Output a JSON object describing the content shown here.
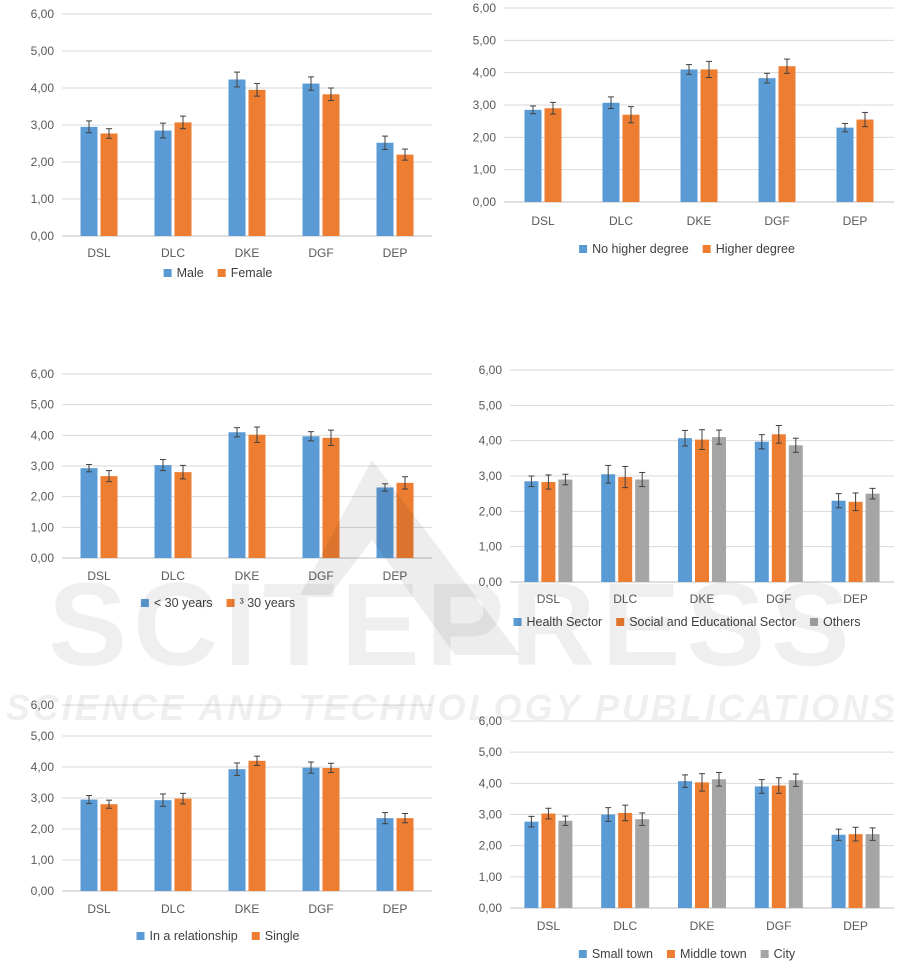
{
  "chart_data": [
    {
      "type": "bar",
      "categories": [
        "DSL",
        "DLC",
        "DKE",
        "DGF",
        "DEP"
      ],
      "ylim": [
        0,
        6
      ],
      "yticks": [
        "0,00",
        "1,00",
        "2,00",
        "3,00",
        "4,00",
        "5,00",
        "6,00"
      ],
      "grid": true,
      "legend_position": "bottom",
      "series": [
        {
          "name": "Male",
          "color": "#5B9BD5",
          "values": [
            2.95,
            2.85,
            4.23,
            4.12,
            2.52
          ],
          "errors": [
            0.16,
            0.2,
            0.2,
            0.18,
            0.18
          ]
        },
        {
          "name": "Female",
          "color": "#ED7D31",
          "values": [
            2.77,
            3.07,
            3.95,
            3.83,
            2.2
          ],
          "errors": [
            0.13,
            0.17,
            0.17,
            0.17,
            0.15
          ]
        }
      ]
    },
    {
      "type": "bar",
      "categories": [
        "DSL",
        "DLC",
        "DKE",
        "DGF",
        "DEP"
      ],
      "ylim": [
        0,
        6
      ],
      "yticks": [
        "0,00",
        "1,00",
        "2,00",
        "3,00",
        "4,00",
        "5,00",
        "6,00"
      ],
      "grid": true,
      "legend_position": "bottom",
      "series": [
        {
          "name": "No higher degree",
          "color": "#5B9BD5",
          "values": [
            2.85,
            3.07,
            4.1,
            3.83,
            2.3
          ],
          "errors": [
            0.12,
            0.18,
            0.15,
            0.15,
            0.13
          ]
        },
        {
          "name": "Higher degree",
          "color": "#ED7D31",
          "values": [
            2.9,
            2.7,
            4.1,
            4.2,
            2.55
          ],
          "errors": [
            0.18,
            0.25,
            0.25,
            0.22,
            0.22
          ]
        }
      ]
    },
    {
      "type": "bar",
      "categories": [
        "DSL",
        "DLC",
        "DKE",
        "DGF",
        "DEP"
      ],
      "ylim": [
        0,
        6
      ],
      "yticks": [
        "0,00",
        "1,00",
        "2,00",
        "3,00",
        "4,00",
        "5,00",
        "6,00"
      ],
      "grid": true,
      "legend_position": "bottom",
      "series": [
        {
          "name": "< 30 years",
          "color": "#5B9BD5",
          "values": [
            2.93,
            3.03,
            4.1,
            3.97,
            2.3
          ],
          "errors": [
            0.12,
            0.18,
            0.15,
            0.15,
            0.12
          ]
        },
        {
          "name": "³ 30 years",
          "color": "#ED7D31",
          "values": [
            2.67,
            2.8,
            4.02,
            3.92,
            2.45
          ],
          "errors": [
            0.18,
            0.22,
            0.25,
            0.25,
            0.2
          ]
        }
      ]
    },
    {
      "type": "bar",
      "categories": [
        "DSL",
        "DLC",
        "DKE",
        "DGF",
        "DEP"
      ],
      "ylim": [
        0,
        6
      ],
      "yticks": [
        "0,00",
        "1,00",
        "2,00",
        "3,00",
        "4,00",
        "5,00",
        "6,00"
      ],
      "grid": true,
      "legend_position": "bottom",
      "series": [
        {
          "name": "Health Sector",
          "color": "#5B9BD5",
          "values": [
            2.85,
            3.05,
            4.07,
            3.97,
            2.3
          ],
          "errors": [
            0.15,
            0.25,
            0.22,
            0.2,
            0.2
          ]
        },
        {
          "name": "Social and Educational Sector",
          "color": "#ED7D31",
          "values": [
            2.83,
            2.97,
            4.03,
            4.18,
            2.27
          ],
          "errors": [
            0.2,
            0.3,
            0.28,
            0.25,
            0.25
          ]
        },
        {
          "name": "Others",
          "color": "#A5A5A5",
          "values": [
            2.9,
            2.9,
            4.1,
            3.87,
            2.5
          ],
          "errors": [
            0.15,
            0.2,
            0.2,
            0.2,
            0.15
          ]
        }
      ]
    },
    {
      "type": "bar",
      "categories": [
        "DSL",
        "DLC",
        "DKE",
        "DGF",
        "DEP"
      ],
      "ylim": [
        0,
        6
      ],
      "yticks": [
        "0,00",
        "1,00",
        "2,00",
        "3,00",
        "4,00",
        "5,00",
        "6,00"
      ],
      "grid": true,
      "legend_position": "bottom",
      "series": [
        {
          "name": "In a relationship",
          "color": "#5B9BD5",
          "values": [
            2.95,
            2.93,
            3.93,
            3.98,
            2.35
          ],
          "errors": [
            0.13,
            0.2,
            0.2,
            0.18,
            0.18
          ]
        },
        {
          "name": "Single",
          "color": "#ED7D31",
          "values": [
            2.8,
            2.98,
            4.2,
            3.97,
            2.35
          ],
          "errors": [
            0.13,
            0.17,
            0.15,
            0.15,
            0.15
          ]
        }
      ]
    },
    {
      "type": "bar",
      "categories": [
        "DSL",
        "DLC",
        "DKE",
        "DGF",
        "DEP"
      ],
      "ylim": [
        0,
        6
      ],
      "yticks": [
        "0,00",
        "1,00",
        "2,00",
        "3,00",
        "4,00",
        "5,00",
        "6,00"
      ],
      "grid": true,
      "legend_position": "bottom",
      "series": [
        {
          "name": "Small town",
          "color": "#5B9BD5",
          "values": [
            2.77,
            3.0,
            4.07,
            3.9,
            2.35
          ],
          "errors": [
            0.17,
            0.22,
            0.2,
            0.22,
            0.18
          ]
        },
        {
          "name": "Middle town",
          "color": "#ED7D31",
          "values": [
            3.03,
            3.05,
            4.03,
            3.93,
            2.37
          ],
          "errors": [
            0.17,
            0.25,
            0.28,
            0.25,
            0.22
          ]
        },
        {
          "name": "City",
          "color": "#A5A5A5",
          "values": [
            2.8,
            2.85,
            4.13,
            4.1,
            2.37
          ],
          "errors": [
            0.15,
            0.2,
            0.22,
            0.2,
            0.2
          ]
        }
      ]
    }
  ],
  "watermark": {
    "line1": "SCITEPRESS",
    "line2": "SCIENCE AND TECHNOLOGY PUBLICATIONS"
  }
}
